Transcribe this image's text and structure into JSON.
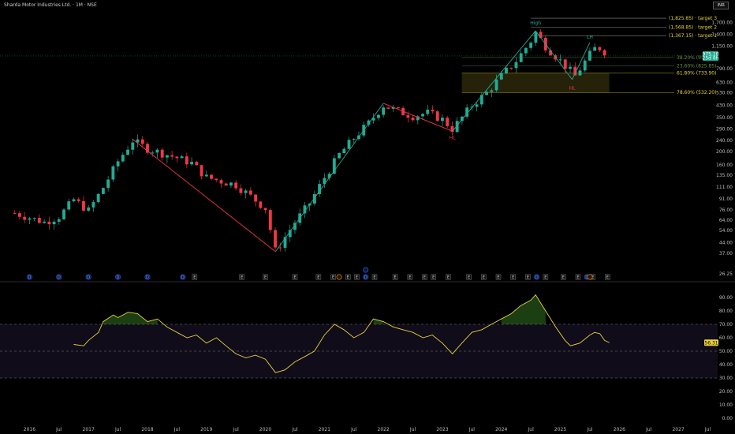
{
  "header": {
    "title": "Sharda Motor Industries Ltd. · 1M · NSE",
    "currency": "INR"
  },
  "chart_data": [
    {
      "type": "candlestick",
      "title": "Sharda Motor Industries Ltd. · 1M · NSE",
      "y_scale": "log",
      "ylim": [
        24,
        1900
      ],
      "x_range": [
        "2015-07",
        "2027-09"
      ],
      "y_ticks": [
        "1,700.00",
        "1,400.00",
        "1,150.00",
        "790.00",
        "630.00",
        "530.00",
        "430.00",
        "350.00",
        "290.00",
        "240.00",
        "200.00",
        "160.00",
        "135.00",
        "111.00",
        "91.00",
        "76.00",
        "64.00",
        "54.00",
        "44.00",
        "37.00",
        "26.25"
      ],
      "x_ticks": [
        {
          "t": 2016.0,
          "label": "2016"
        },
        {
          "t": 2016.5,
          "label": "Jul"
        },
        {
          "t": 2017.0,
          "label": "2017"
        },
        {
          "t": 2017.5,
          "label": "Jul"
        },
        {
          "t": 2018.0,
          "label": "2018"
        },
        {
          "t": 2018.5,
          "label": "Jul"
        },
        {
          "t": 2019.0,
          "label": "2019"
        },
        {
          "t": 2019.5,
          "label": "Jul"
        },
        {
          "t": 2020.0,
          "label": "2020"
        },
        {
          "t": 2020.5,
          "label": "Jul"
        },
        {
          "t": 2021.0,
          "label": "2021"
        },
        {
          "t": 2021.5,
          "label": "Jul"
        },
        {
          "t": 2022.0,
          "label": "2022"
        },
        {
          "t": 2022.5,
          "label": "Jul"
        },
        {
          "t": 2023.0,
          "label": "2023"
        },
        {
          "t": 2023.5,
          "label": "Jul"
        },
        {
          "t": 2024.0,
          "label": "2024"
        },
        {
          "t": 2024.5,
          "label": "Jul"
        },
        {
          "t": 2025.0,
          "label": "2025"
        },
        {
          "t": 2025.5,
          "label": "Jul"
        },
        {
          "t": 2026.0,
          "label": "2026"
        },
        {
          "t": 2026.5,
          "label": "Jul"
        },
        {
          "t": 2027.0,
          "label": "2027"
        },
        {
          "t": 2027.5,
          "label": "Jul"
        }
      ],
      "waypoints": [
        [
          2015.75,
          72
        ],
        [
          2016.25,
          62
        ],
        [
          2016.5,
          68
        ],
        [
          2016.75,
          90
        ],
        [
          2017.0,
          75
        ],
        [
          2017.25,
          110
        ],
        [
          2017.5,
          170
        ],
        [
          2017.75,
          240
        ],
        [
          2018.0,
          210
        ],
        [
          2018.5,
          180
        ],
        [
          2018.75,
          165
        ],
        [
          2019.0,
          130
        ],
        [
          2019.5,
          115
        ],
        [
          2019.75,
          95
        ],
        [
          2020.0,
          78
        ],
        [
          2020.17,
          38
        ],
        [
          2020.5,
          62
        ],
        [
          2020.75,
          85
        ],
        [
          2021.0,
          130
        ],
        [
          2021.25,
          190
        ],
        [
          2021.5,
          250
        ],
        [
          2021.75,
          320
        ],
        [
          2022.0,
          430
        ],
        [
          2022.25,
          390
        ],
        [
          2022.5,
          360
        ],
        [
          2022.75,
          380
        ],
        [
          2023.0,
          340
        ],
        [
          2023.17,
          290
        ],
        [
          2023.5,
          430
        ],
        [
          2023.75,
          530
        ],
        [
          2024.0,
          700
        ],
        [
          2024.25,
          900
        ],
        [
          2024.5,
          1250
        ],
        [
          2024.58,
          1450
        ],
        [
          2024.75,
          1150
        ],
        [
          2025.0,
          900
        ],
        [
          2025.25,
          700
        ],
        [
          2025.5,
          1000
        ],
        [
          2025.62,
          1150
        ],
        [
          2025.75,
          1050
        ],
        [
          2025.83,
          975
        ]
      ],
      "last_price": "975.10",
      "countdown": "25d 8h",
      "pattern_lines": [
        {
          "from": [
            2017.75,
            245
          ],
          "to": [
            2020.17,
            38
          ],
          "color": "#f23645"
        },
        {
          "from": [
            2020.17,
            38
          ],
          "to": [
            2022.0,
            445
          ],
          "color": "#22ab94"
        },
        {
          "from": [
            2022.0,
            445
          ],
          "to": [
            2023.17,
            280
          ],
          "color": "#f23645"
        },
        {
          "from": [
            2023.17,
            280
          ],
          "to": [
            2024.58,
            1480
          ],
          "color": "#22ab94"
        },
        {
          "from": [
            2024.58,
            1480
          ],
          "to": [
            2025.2,
            660
          ],
          "color": "#22ab94"
        },
        {
          "from": [
            2025.2,
            660
          ],
          "to": [
            2025.5,
            1220
          ],
          "color": "#22ab94"
        }
      ],
      "annotations": [
        {
          "text": "High",
          "x": 2024.58,
          "y": 1650,
          "color": "#22ab94"
        },
        {
          "text": "LH",
          "x": 2025.5,
          "y": 1300,
          "color": "#22ab94"
        },
        {
          "text": "HL",
          "x": 2025.2,
          "y": 560,
          "color": "#f23645"
        },
        {
          "text": "HL",
          "x": 2023.17,
          "y": 245,
          "color": "#f23645"
        }
      ],
      "targets": [
        {
          "label": "(1,825.85) · target 3",
          "value": 1825.85
        },
        {
          "label": "(1,568.85) · target 2",
          "value": 1568.85
        },
        {
          "label": "(1,367.15) · target 1",
          "value": 1367.15
        }
      ],
      "fib_levels": [
        {
          "label": "38.20% (950.10)",
          "value": 950.1,
          "color": "#6b8f45"
        },
        {
          "label": "23.60% (825.85)",
          "value": 825.85,
          "color": "#6b8f45"
        },
        {
          "label": "61.80% (733.90)",
          "value": 733.9,
          "color": "#e8d23a"
        },
        {
          "label": "78.60% (532.20)",
          "value": 532.2,
          "color": "#e8d23a"
        }
      ],
      "colors": {
        "up": "#22ab94",
        "down": "#f23645",
        "target": "#e8d23a"
      }
    },
    {
      "type": "line",
      "title": "",
      "ylim": [
        0,
        100
      ],
      "y_ticks": [
        "90.00",
        "80.00",
        "70.00",
        "60.00",
        "50.00",
        "40.00",
        "30.00",
        "20.00",
        "10.00",
        "0.00"
      ],
      "bands": [
        70,
        50,
        30
      ],
      "last_value": "56.31",
      "points": [
        [
          2016.75,
          55
        ],
        [
          2016.92,
          54
        ],
        [
          2017.0,
          58
        ],
        [
          2017.17,
          64
        ],
        [
          2017.25,
          72
        ],
        [
          2017.42,
          77
        ],
        [
          2017.5,
          75
        ],
        [
          2017.67,
          79
        ],
        [
          2017.83,
          78
        ],
        [
          2018.0,
          72
        ],
        [
          2018.17,
          74
        ],
        [
          2018.33,
          68
        ],
        [
          2018.5,
          64
        ],
        [
          2018.67,
          60
        ],
        [
          2018.83,
          62
        ],
        [
          2019.0,
          56
        ],
        [
          2019.17,
          60
        ],
        [
          2019.33,
          54
        ],
        [
          2019.5,
          48
        ],
        [
          2019.67,
          45
        ],
        [
          2019.83,
          47
        ],
        [
          2020.0,
          44
        ],
        [
          2020.17,
          34
        ],
        [
          2020.33,
          36
        ],
        [
          2020.5,
          42
        ],
        [
          2020.67,
          46
        ],
        [
          2020.83,
          50
        ],
        [
          2021.0,
          62
        ],
        [
          2021.17,
          70
        ],
        [
          2021.33,
          66
        ],
        [
          2021.5,
          60
        ],
        [
          2021.67,
          64
        ],
        [
          2021.83,
          74
        ],
        [
          2022.0,
          72
        ],
        [
          2022.17,
          68
        ],
        [
          2022.33,
          66
        ],
        [
          2022.5,
          64
        ],
        [
          2022.67,
          60
        ],
        [
          2022.83,
          62
        ],
        [
          2023.0,
          56
        ],
        [
          2023.17,
          48
        ],
        [
          2023.33,
          56
        ],
        [
          2023.5,
          64
        ],
        [
          2023.67,
          66
        ],
        [
          2023.83,
          70
        ],
        [
          2024.0,
          74
        ],
        [
          2024.17,
          78
        ],
        [
          2024.33,
          84
        ],
        [
          2024.5,
          88
        ],
        [
          2024.58,
          92
        ],
        [
          2024.75,
          80
        ],
        [
          2024.92,
          68
        ],
        [
          2025.08,
          58
        ],
        [
          2025.17,
          54
        ],
        [
          2025.33,
          56
        ],
        [
          2025.5,
          62
        ],
        [
          2025.58,
          64
        ],
        [
          2025.67,
          63
        ],
        [
          2025.75,
          58
        ],
        [
          2025.83,
          56.31
        ]
      ],
      "color": "#e8d23a"
    }
  ],
  "events": {
    "dividend_positions": [
      2016.0,
      2016.5,
      2017.0,
      2017.5,
      2018.0,
      2018.6,
      2021.7,
      2024.6,
      2025.45
    ],
    "earnings_positions": [
      2018.8,
      2019.6,
      2020.0,
      2020.5,
      2020.9,
      2021.15,
      2021.4,
      2021.55,
      2021.85,
      2022.2,
      2022.45,
      2022.7,
      2022.85,
      2023.1,
      2023.45,
      2023.7,
      2023.95,
      2024.2,
      2024.45,
      2024.75,
      2025.05,
      2025.3,
      2025.55,
      2025.8
    ],
    "split_positions": [
      2021.25,
      2025.5
    ],
    "dividend_symbol": "D",
    "earnings_symbol": "E"
  }
}
